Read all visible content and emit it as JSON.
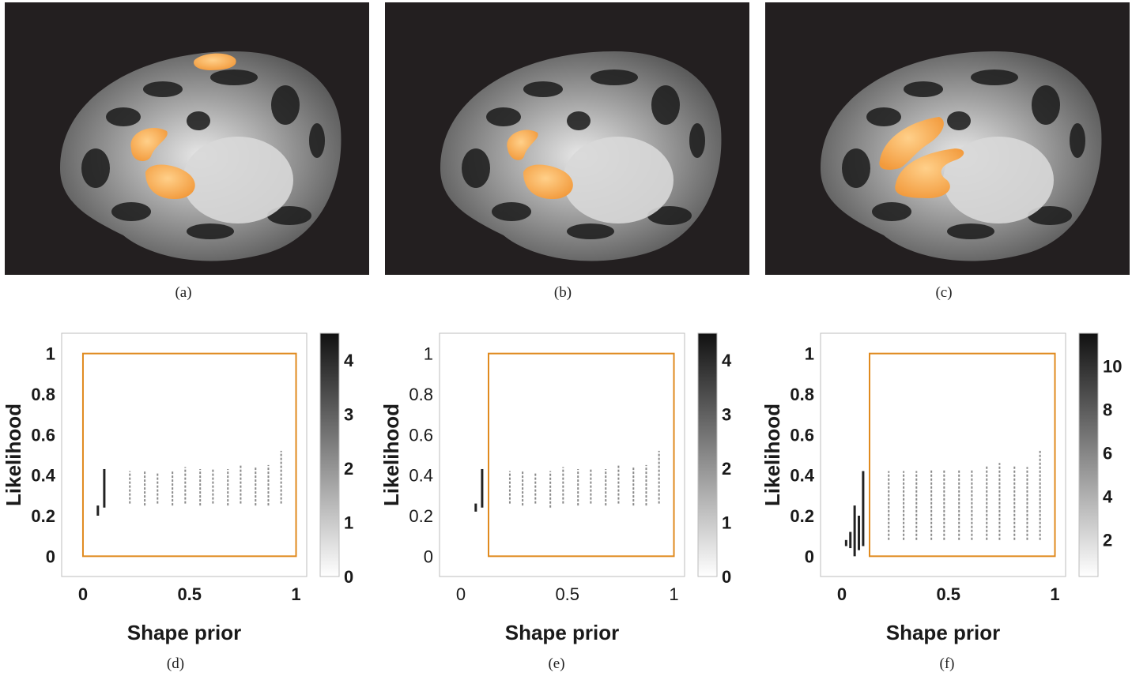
{
  "captions": {
    "a": "(a)",
    "b": "(b)",
    "c": "(c)",
    "d": "(d)",
    "e": "(e)",
    "f": "(f)"
  },
  "colors": {
    "panel_bg": "#231f20",
    "overlay": "#f5a85a",
    "frame": "#e08a1e",
    "scatter": "#444444"
  },
  "chart_data": [
    {
      "type": "scatter",
      "panel": "d",
      "xlabel": "Shape prior",
      "ylabel": "Likelihood",
      "xlim": [
        -0.1,
        1.05
      ],
      "ylim": [
        -0.1,
        1.1
      ],
      "xticks": [
        "0",
        "0.5",
        "1"
      ],
      "yticks": [
        "0",
        "0.2",
        "0.4",
        "0.6",
        "0.8",
        "1"
      ],
      "colorbar_ticks": [
        "0",
        "1",
        "2",
        "3",
        "4"
      ],
      "colorbar_max": 4.5,
      "frame_box": {
        "x": [
          0,
          1
        ],
        "y": [
          0,
          1
        ]
      },
      "column_x": [
        0.07,
        0.1,
        0.22,
        0.29,
        0.35,
        0.42,
        0.48,
        0.55,
        0.61,
        0.68,
        0.74,
        0.81,
        0.87,
        0.93
      ],
      "column_ymin": [
        0.2,
        0.24,
        0.26,
        0.25,
        0.26,
        0.25,
        0.26,
        0.25,
        0.26,
        0.25,
        0.26,
        0.25,
        0.25,
        0.26
      ],
      "column_ymax": [
        0.25,
        0.43,
        0.42,
        0.42,
        0.41,
        0.42,
        0.44,
        0.43,
        0.43,
        0.43,
        0.45,
        0.44,
        0.45,
        0.52
      ]
    },
    {
      "type": "scatter",
      "panel": "e",
      "xlabel": "Shape prior",
      "ylabel": "Likelihood",
      "xlim": [
        -0.1,
        1.05
      ],
      "ylim": [
        -0.1,
        1.1
      ],
      "xticks": [
        "0",
        "0.5",
        "1"
      ],
      "yticks": [
        "0",
        "0.2",
        "0.4",
        "0.6",
        "0.8",
        "1"
      ],
      "colorbar_ticks": [
        "0",
        "1",
        "2",
        "3",
        "4"
      ],
      "colorbar_max": 4.5,
      "frame_box": {
        "x": [
          0.13,
          1
        ],
        "y": [
          0,
          1
        ]
      },
      "column_x": [
        0.07,
        0.1,
        0.23,
        0.29,
        0.35,
        0.42,
        0.48,
        0.55,
        0.61,
        0.68,
        0.74,
        0.81,
        0.87,
        0.93
      ],
      "column_ymin": [
        0.22,
        0.24,
        0.26,
        0.25,
        0.26,
        0.24,
        0.26,
        0.25,
        0.26,
        0.25,
        0.26,
        0.25,
        0.25,
        0.26
      ],
      "column_ymax": [
        0.26,
        0.43,
        0.42,
        0.42,
        0.41,
        0.42,
        0.44,
        0.43,
        0.43,
        0.43,
        0.45,
        0.44,
        0.45,
        0.52
      ]
    },
    {
      "type": "scatter",
      "panel": "f",
      "xlabel": "Shape prior",
      "ylabel": "Likelihood",
      "xlim": [
        -0.1,
        1.05
      ],
      "ylim": [
        -0.1,
        1.1
      ],
      "xticks": [
        "0",
        "0.5",
        "1"
      ],
      "yticks": [
        "0",
        "0.2",
        "0.4",
        "0.6",
        "0.8",
        "1"
      ],
      "colorbar_ticks": [
        "2",
        "4",
        "6",
        "8",
        "10"
      ],
      "colorbar_max": 11.5,
      "frame_box": {
        "x": [
          0.13,
          1
        ],
        "y": [
          0,
          1
        ]
      },
      "column_x": [
        0.02,
        0.04,
        0.06,
        0.08,
        0.1,
        0.22,
        0.29,
        0.35,
        0.42,
        0.48,
        0.55,
        0.61,
        0.68,
        0.74,
        0.81,
        0.87,
        0.93
      ],
      "column_ymin": [
        0.05,
        0.04,
        0.0,
        0.03,
        0.05,
        0.08,
        0.08,
        0.08,
        0.08,
        0.08,
        0.08,
        0.08,
        0.08,
        0.08,
        0.08,
        0.08,
        0.08
      ],
      "column_ymax": [
        0.08,
        0.12,
        0.25,
        0.2,
        0.42,
        0.42,
        0.42,
        0.42,
        0.43,
        0.43,
        0.43,
        0.43,
        0.45,
        0.46,
        0.45,
        0.44,
        0.52
      ]
    }
  ]
}
